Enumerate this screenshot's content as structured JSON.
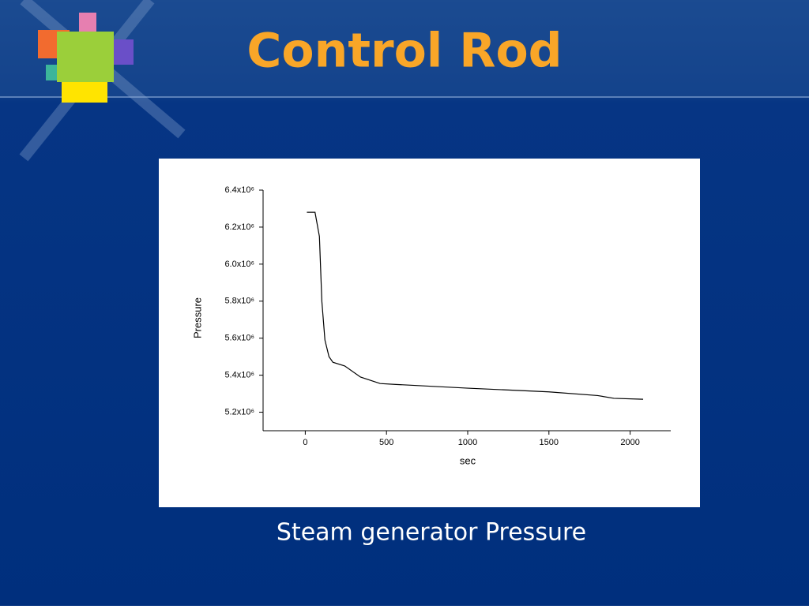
{
  "slide": {
    "title": "Control Rod",
    "caption": "Steam generator Pressure"
  },
  "chart_data": {
    "type": "line",
    "x_label": "sec",
    "y_label": "Pressure",
    "color": "#000000",
    "x": [
      10,
      60,
      87,
      102,
      121,
      146,
      170,
      243,
      340,
      461,
      558,
      1000,
      1500,
      1800,
      1900,
      2080
    ],
    "values": [
      6280000,
      6280000,
      6150000,
      5800000,
      5590000,
      5500000,
      5470000,
      5450000,
      5390000,
      5355000,
      5350000,
      5330000,
      5310000,
      5290000,
      5275000,
      5270000
    ],
    "xlim": [
      -250,
      2250
    ],
    "xticks": [
      0,
      500,
      1000,
      1500,
      2000
    ],
    "ylim": [
      5100000,
      6400000
    ],
    "yticks": [
      {
        "value": 5200000,
        "label": "5.2x10⁶"
      },
      {
        "value": 5400000,
        "label": "5.4x10⁶"
      },
      {
        "value": 5600000,
        "label": "5.6x10⁶"
      },
      {
        "value": 5800000,
        "label": "5.8x10⁶"
      },
      {
        "value": 6000000,
        "label": "6.0x10⁶"
      },
      {
        "value": 6200000,
        "label": "6.2x10⁶"
      },
      {
        "value": 6400000,
        "label": "6.4x10⁶"
      }
    ]
  }
}
